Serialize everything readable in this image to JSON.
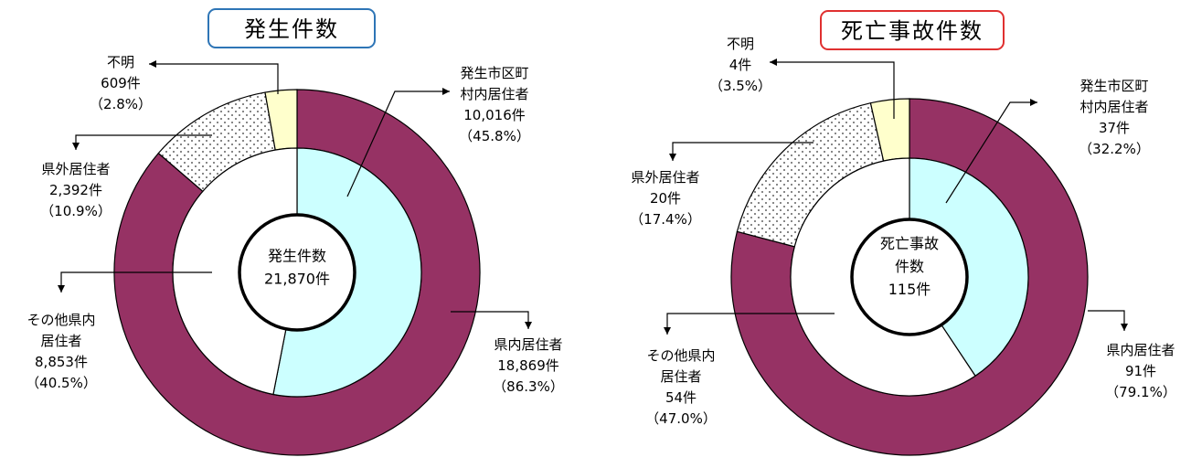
{
  "chart_data": [
    {
      "type": "pie",
      "title": "発生件数",
      "title_border_color": "#2e75b6",
      "center_lines": [
        "発生件数",
        "21,870件"
      ],
      "outer_ring": [
        {
          "label_lines": [
            "県内居住者",
            "18,869件",
            "（86.3%）"
          ],
          "value": 86.3,
          "color": "#963264",
          "pattern": "solid"
        },
        {
          "label_lines": [
            "県外居住者",
            "2,392件",
            "（10.9%）"
          ],
          "value": 10.9,
          "color": "#ffffff",
          "pattern": "dots"
        },
        {
          "label_lines": [
            "不明",
            "609件",
            "（2.8%）"
          ],
          "value": 2.8,
          "color": "#ffffcc",
          "pattern": "solid"
        }
      ],
      "inner_ring": [
        {
          "label_lines": [
            "発生市区町",
            "村内居住者",
            "10,016件",
            "（45.8%）"
          ],
          "value": 45.8,
          "color": "#ccffff",
          "pattern": "solid"
        },
        {
          "label_lines": [
            "その他県内",
            "居住者",
            "8,853件",
            "（40.5%）"
          ],
          "value": 40.5,
          "color": "#ffffff",
          "pattern": "solid"
        }
      ]
    },
    {
      "type": "pie",
      "title": "死亡事故件数",
      "title_border_color": "#e03030",
      "center_lines": [
        "死亡事故",
        "件数",
        "115件"
      ],
      "outer_ring": [
        {
          "label_lines": [
            "県内居住者",
            "91件",
            "（79.1%）"
          ],
          "value": 79.1,
          "color": "#963264",
          "pattern": "solid"
        },
        {
          "label_lines": [
            "県外居住者",
            "20件",
            "（17.4%）"
          ],
          "value": 17.4,
          "color": "#ffffff",
          "pattern": "dots"
        },
        {
          "label_lines": [
            "不明",
            "4件",
            "（3.5%）"
          ],
          "value": 3.5,
          "color": "#ffffcc",
          "pattern": "solid"
        }
      ],
      "inner_ring": [
        {
          "label_lines": [
            "発生市区町",
            "村内居住者",
            "37件",
            "（32.2%）"
          ],
          "value": 32.2,
          "color": "#ccffff",
          "pattern": "solid"
        },
        {
          "label_lines": [
            "その他県内",
            "居住者",
            "54件",
            "（47.0%）"
          ],
          "value": 47.0,
          "color": "#ffffff",
          "pattern": "solid"
        }
      ]
    }
  ]
}
